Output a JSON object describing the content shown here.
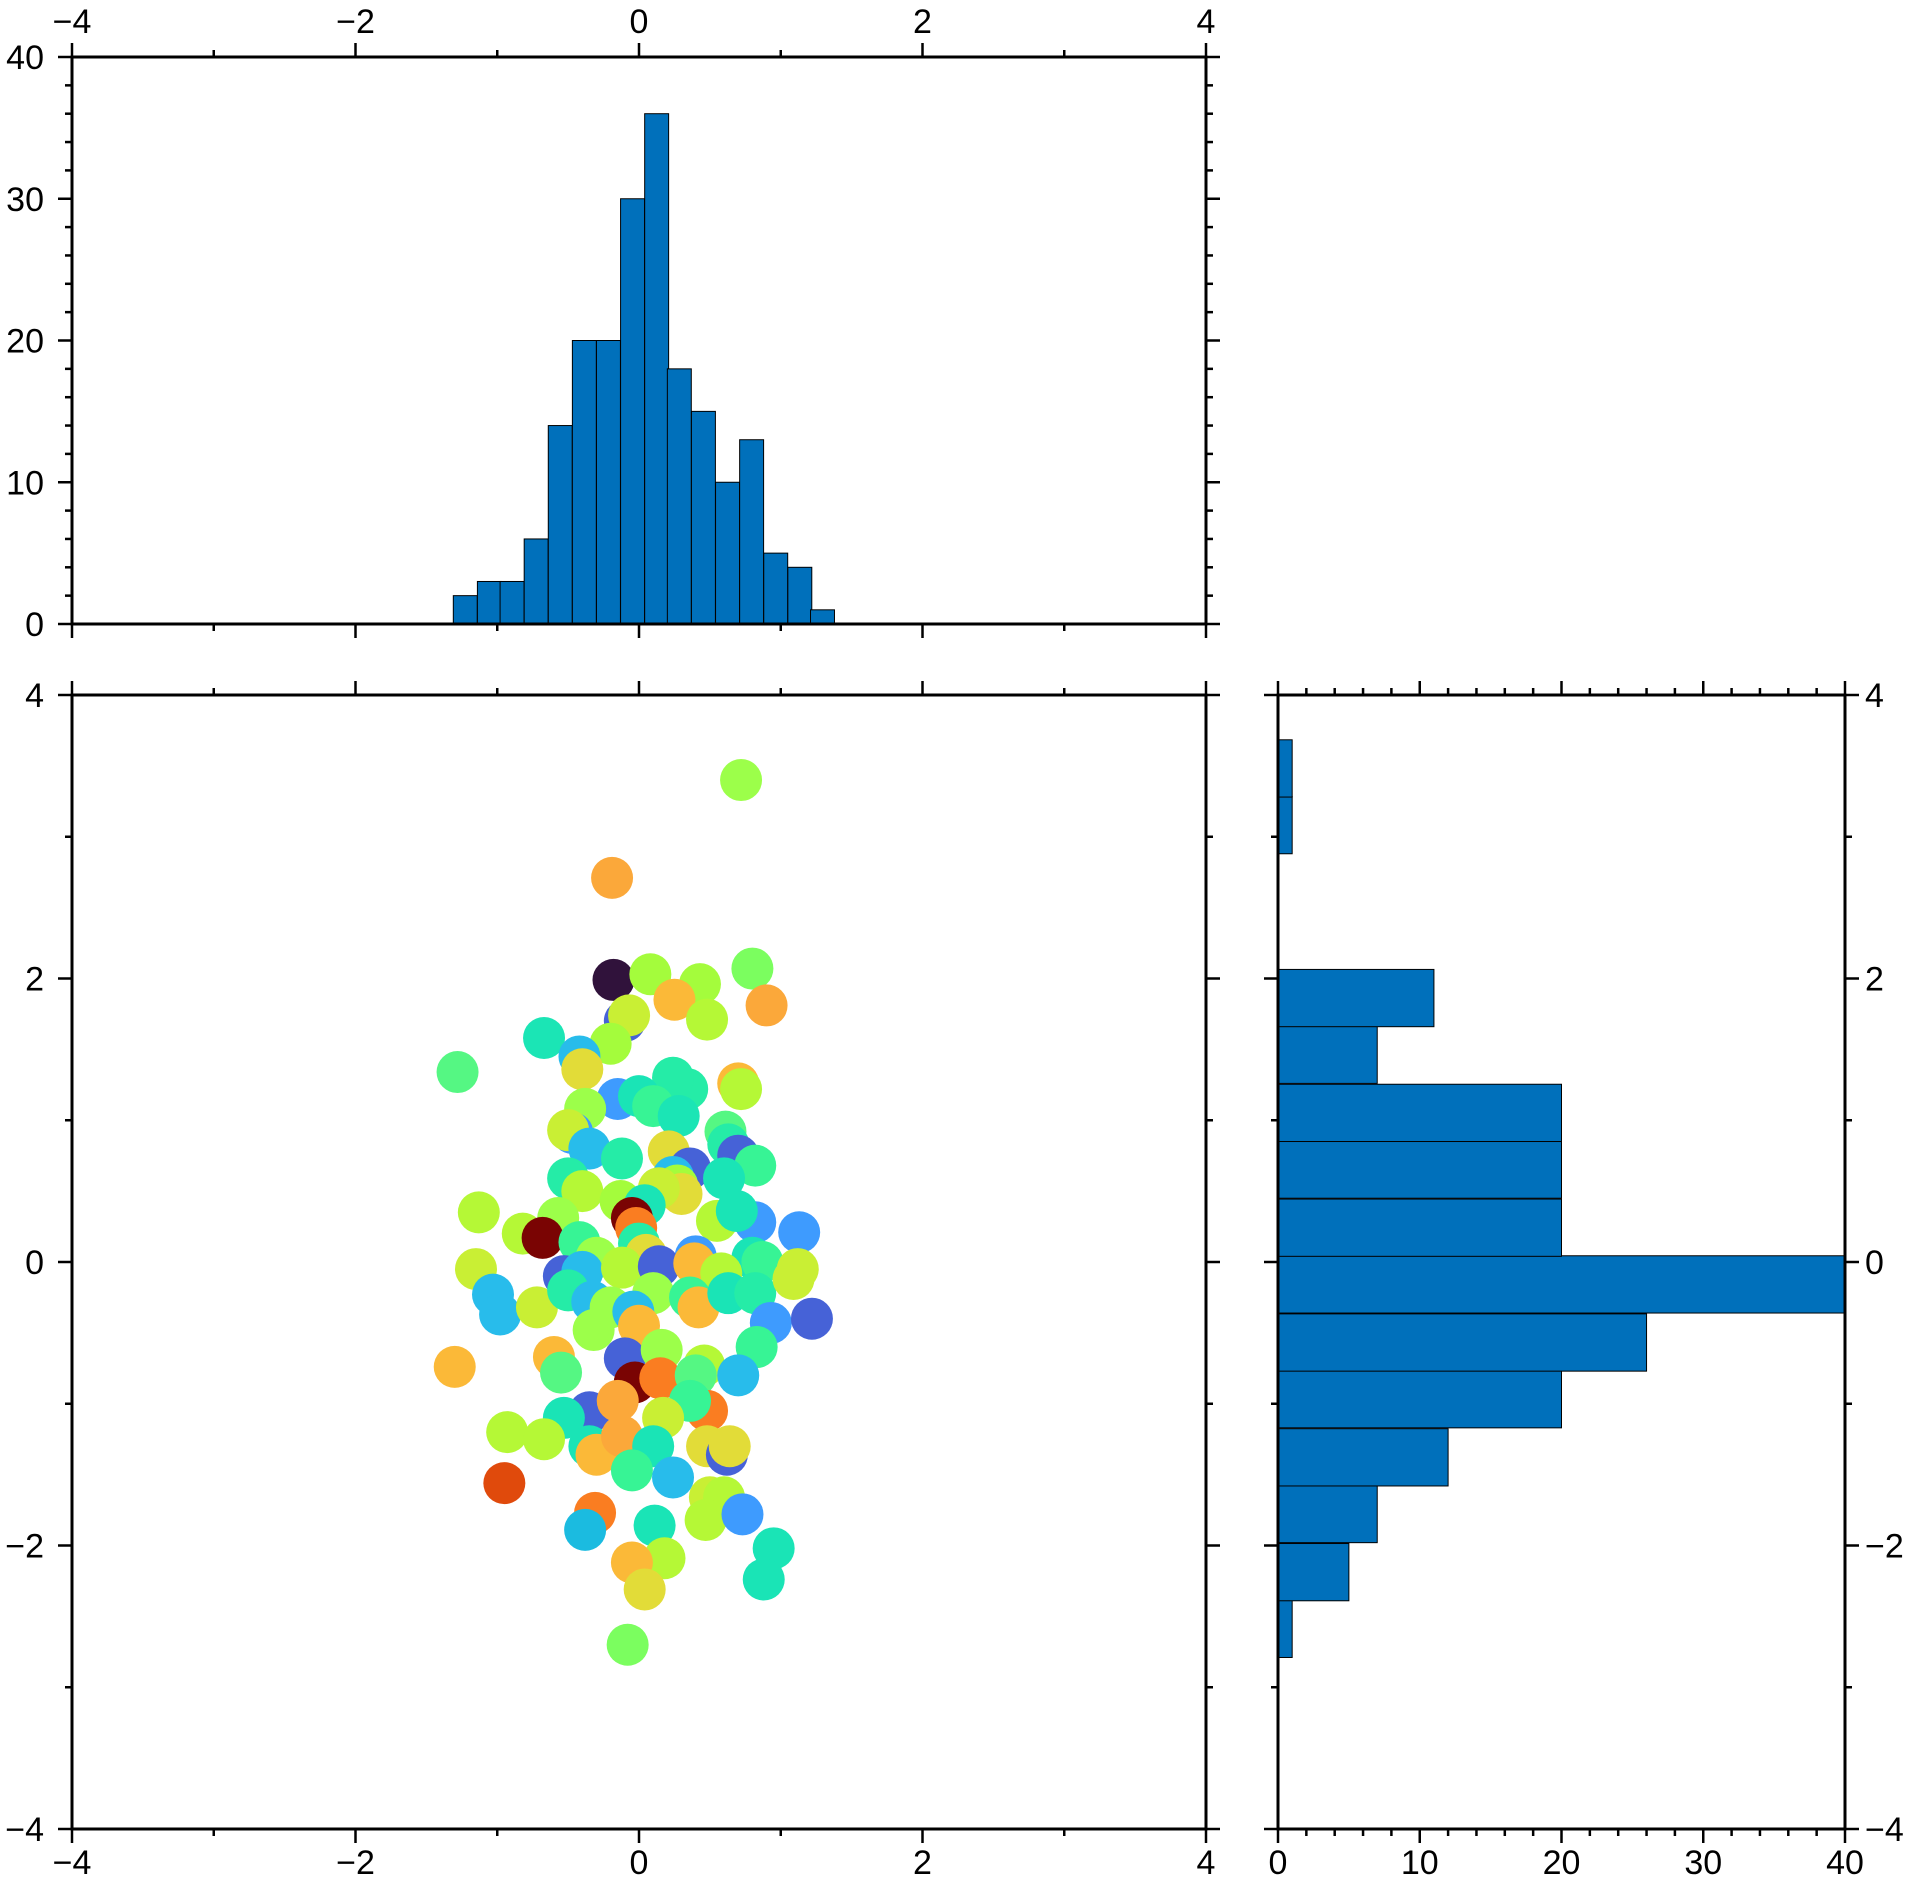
{
  "chart_data": [
    {
      "type": "bar",
      "panel": "top-histogram",
      "x_tick_labels": [
        "−4",
        "−2",
        "0",
        "2",
        "4"
      ],
      "y_tick_labels": [
        "0",
        "10",
        "20",
        "30",
        "40"
      ],
      "xlim": [
        -4,
        4
      ],
      "ylim": [
        0,
        40
      ],
      "bin_width": 0.169,
      "bars": [
        {
          "x0": -1.31,
          "value": 2
        },
        {
          "x0": -1.14,
          "value": 3
        },
        {
          "x0": -0.98,
          "value": 3
        },
        {
          "x0": -0.81,
          "value": 6
        },
        {
          "x0": -0.64,
          "value": 14
        },
        {
          "x0": -0.47,
          "value": 20
        },
        {
          "x0": -0.3,
          "value": 20
        },
        {
          "x0": -0.13,
          "value": 30
        },
        {
          "x0": 0.04,
          "value": 36
        },
        {
          "x0": 0.2,
          "value": 18
        },
        {
          "x0": 0.37,
          "value": 15
        },
        {
          "x0": 0.54,
          "value": 10
        },
        {
          "x0": 0.71,
          "value": 13
        },
        {
          "x0": 0.88,
          "value": 5
        },
        {
          "x0": 1.05,
          "value": 4
        },
        {
          "x0": 1.21,
          "value": 1
        }
      ],
      "bar_color": "#0070BB"
    },
    {
      "type": "scatter",
      "panel": "main-scatter",
      "x_tick_labels": [
        "−4",
        "−2",
        "0",
        "2",
        "4"
      ],
      "y_tick_labels": [
        "−4",
        "−2",
        "0",
        "2",
        "4"
      ],
      "xlim": [
        -4,
        4
      ],
      "ylim": [
        -4,
        4
      ],
      "points": [
        {
          "x": 0.72,
          "y": 3.4,
          "c": "#9CFF4A"
        },
        {
          "x": -0.19,
          "y": 2.71,
          "c": "#FBA83A"
        },
        {
          "x": -0.18,
          "y": 1.99,
          "c": "#30123B"
        },
        {
          "x": 0.08,
          "y": 2.03,
          "c": "#A4FC3C"
        },
        {
          "x": 0.43,
          "y": 1.96,
          "c": "#A4FC3C"
        },
        {
          "x": 0.8,
          "y": 2.07,
          "c": "#7BFE5F"
        },
        {
          "x": 0.9,
          "y": 1.81,
          "c": "#FBA83A"
        },
        {
          "x": 0.25,
          "y": 1.85,
          "c": "#FBB938"
        },
        {
          "x": -0.1,
          "y": 1.7,
          "c": "#4662D7"
        },
        {
          "x": -0.07,
          "y": 1.74,
          "c": "#C9EF34"
        },
        {
          "x": 0.48,
          "y": 1.71,
          "c": "#B5F836"
        },
        {
          "x": -0.67,
          "y": 1.58,
          "c": "#1BE5B5"
        },
        {
          "x": -0.2,
          "y": 1.54,
          "c": "#A4FC3C"
        },
        {
          "x": -0.42,
          "y": 1.45,
          "c": "#28BCEB"
        },
        {
          "x": -1.28,
          "y": 1.34,
          "c": "#55F783"
        },
        {
          "x": -0.4,
          "y": 1.36,
          "c": "#E2DC38"
        },
        {
          "x": 0.7,
          "y": 1.26,
          "c": "#FBB938"
        },
        {
          "x": 0.72,
          "y": 1.22,
          "c": "#B5F836"
        },
        {
          "x": 0.34,
          "y": 1.22,
          "c": "#25ECA7"
        },
        {
          "x": 0.24,
          "y": 1.3,
          "c": "#25ECA7"
        },
        {
          "x": -0.15,
          "y": 1.15,
          "c": "#3E9BFE"
        },
        {
          "x": 0.0,
          "y": 1.17,
          "c": "#1AE4B6"
        },
        {
          "x": -0.38,
          "y": 1.08,
          "c": "#9CFF4A"
        },
        {
          "x": 0.1,
          "y": 1.1,
          "c": "#37F495"
        },
        {
          "x": 0.28,
          "y": 1.03,
          "c": "#1BE5B5"
        },
        {
          "x": 0.61,
          "y": 0.92,
          "c": "#55F783"
        },
        {
          "x": 0.63,
          "y": 0.83,
          "c": "#25ECA7"
        },
        {
          "x": -0.47,
          "y": 0.91,
          "c": "#3E9BFE"
        },
        {
          "x": -0.5,
          "y": 0.93,
          "c": "#C9EF34"
        },
        {
          "x": -0.35,
          "y": 0.8,
          "c": "#28BCEB"
        },
        {
          "x": 0.21,
          "y": 0.78,
          "c": "#E2DC38"
        },
        {
          "x": -0.12,
          "y": 0.73,
          "c": "#25ECA7"
        },
        {
          "x": 0.7,
          "y": 0.75,
          "c": "#4662D7"
        },
        {
          "x": 0.82,
          "y": 0.68,
          "c": "#37F495"
        },
        {
          "x": 0.36,
          "y": 0.66,
          "c": "#4662D7"
        },
        {
          "x": 0.6,
          "y": 0.59,
          "c": "#1AE4B6"
        },
        {
          "x": 0.24,
          "y": 0.6,
          "c": "#28BCEB"
        },
        {
          "x": 0.27,
          "y": 0.54,
          "c": "#A4FC3C"
        },
        {
          "x": 0.3,
          "y": 0.48,
          "c": "#E2DC38"
        },
        {
          "x": 0.14,
          "y": 0.52,
          "c": "#C9EF34"
        },
        {
          "x": -0.5,
          "y": 0.59,
          "c": "#25ECA7"
        },
        {
          "x": -0.4,
          "y": 0.5,
          "c": "#B5F836"
        },
        {
          "x": -0.13,
          "y": 0.43,
          "c": "#A4FC3C"
        },
        {
          "x": 0.04,
          "y": 0.4,
          "c": "#1AE4B6"
        },
        {
          "x": -1.13,
          "y": 0.35,
          "c": "#B5F836"
        },
        {
          "x": -0.57,
          "y": 0.31,
          "c": "#9CFF4A"
        },
        {
          "x": -0.05,
          "y": 0.31,
          "c": "#7A0403"
        },
        {
          "x": 0.82,
          "y": 0.28,
          "c": "#3E9BFE"
        },
        {
          "x": 0.55,
          "y": 0.29,
          "c": "#B5F836"
        },
        {
          "x": 0.69,
          "y": 0.36,
          "c": "#1AE4B6"
        },
        {
          "x": 1.13,
          "y": 0.21,
          "c": "#3E9BFE"
        },
        {
          "x": -0.82,
          "y": 0.2,
          "c": "#B5F836"
        },
        {
          "x": -0.68,
          "y": 0.17,
          "c": "#7A0403"
        },
        {
          "x": -0.02,
          "y": 0.24,
          "c": "#FA7D21"
        },
        {
          "x": -0.42,
          "y": 0.14,
          "c": "#37F495"
        },
        {
          "x": 0.0,
          "y": 0.13,
          "c": "#25ECA7"
        },
        {
          "x": -0.3,
          "y": 0.03,
          "c": "#9CFF4A"
        },
        {
          "x": 0.05,
          "y": 0.05,
          "c": "#E2DC38"
        },
        {
          "x": 0.4,
          "y": 0.04,
          "c": "#3E9BFE"
        },
        {
          "x": 0.8,
          "y": 0.03,
          "c": "#1AE4B6"
        },
        {
          "x": 0.87,
          "y": 0.0,
          "c": "#37F495"
        },
        {
          "x": -1.15,
          "y": -0.05,
          "c": "#C9EF34"
        },
        {
          "x": -0.53,
          "y": -0.1,
          "c": "#4662D7"
        },
        {
          "x": -0.4,
          "y": -0.07,
          "c": "#28BCEB"
        },
        {
          "x": -0.12,
          "y": -0.04,
          "c": "#B5F836"
        },
        {
          "x": 0.14,
          "y": -0.03,
          "c": "#4662D7"
        },
        {
          "x": 0.39,
          "y": -0.01,
          "c": "#FBB938"
        },
        {
          "x": 0.58,
          "y": -0.08,
          "c": "#B5F836"
        },
        {
          "x": 1.12,
          "y": -0.05,
          "c": "#C9EF34"
        },
        {
          "x": -1.03,
          "y": -0.23,
          "c": "#28BCEB"
        },
        {
          "x": -0.98,
          "y": -0.37,
          "c": "#28BCEB"
        },
        {
          "x": -0.72,
          "y": -0.32,
          "c": "#C9EF34"
        },
        {
          "x": -0.5,
          "y": -0.2,
          "c": "#25ECA7"
        },
        {
          "x": -0.33,
          "y": -0.28,
          "c": "#28BCEB"
        },
        {
          "x": -0.2,
          "y": -0.32,
          "c": "#9CFF4A"
        },
        {
          "x": 0.1,
          "y": -0.22,
          "c": "#9CFF4A"
        },
        {
          "x": 0.36,
          "y": -0.25,
          "c": "#37F495"
        },
        {
          "x": 0.42,
          "y": -0.32,
          "c": "#FBB938"
        },
        {
          "x": 0.63,
          "y": -0.22,
          "c": "#1AE4B6"
        },
        {
          "x": 0.82,
          "y": -0.22,
          "c": "#25ECA7"
        },
        {
          "x": 1.09,
          "y": -0.12,
          "c": "#C9EF34"
        },
        {
          "x": -0.04,
          "y": -0.35,
          "c": "#28BCEB"
        },
        {
          "x": 0.93,
          "y": -0.43,
          "c": "#3E9BFE"
        },
        {
          "x": 1.22,
          "y": -0.4,
          "c": "#4662D7"
        },
        {
          "x": -0.32,
          "y": -0.48,
          "c": "#9CFF4A"
        },
        {
          "x": 0.0,
          "y": -0.45,
          "c": "#FBB938"
        },
        {
          "x": -1.3,
          "y": -0.74,
          "c": "#FBB938"
        },
        {
          "x": -0.6,
          "y": -0.67,
          "c": "#FBB938"
        },
        {
          "x": -0.55,
          "y": -0.78,
          "c": "#55F783"
        },
        {
          "x": -0.1,
          "y": -0.68,
          "c": "#4662D7"
        },
        {
          "x": 0.16,
          "y": -0.62,
          "c": "#9CFF4A"
        },
        {
          "x": 0.46,
          "y": -0.73,
          "c": "#B5F836"
        },
        {
          "x": 0.83,
          "y": -0.6,
          "c": "#37F495"
        },
        {
          "x": 0.7,
          "y": -0.8,
          "c": "#28BCEB"
        },
        {
          "x": -0.03,
          "y": -0.85,
          "c": "#7A0403"
        },
        {
          "x": 0.15,
          "y": -0.82,
          "c": "#FA7D21"
        },
        {
          "x": 0.4,
          "y": -0.8,
          "c": "#55F783"
        },
        {
          "x": -0.35,
          "y": -1.06,
          "c": "#4662D7"
        },
        {
          "x": -0.15,
          "y": -0.98,
          "c": "#FBA83A"
        },
        {
          "x": 0.48,
          "y": -1.05,
          "c": "#FA7D21"
        },
        {
          "x": 0.36,
          "y": -0.98,
          "c": "#37F495"
        },
        {
          "x": -0.53,
          "y": -1.1,
          "c": "#1AE4B6"
        },
        {
          "x": 0.17,
          "y": -1.1,
          "c": "#C9EF34"
        },
        {
          "x": -0.93,
          "y": -1.2,
          "c": "#B5F836"
        },
        {
          "x": -0.67,
          "y": -1.25,
          "c": "#B5F836"
        },
        {
          "x": -0.35,
          "y": -1.3,
          "c": "#1AE4B6"
        },
        {
          "x": -0.3,
          "y": -1.36,
          "c": "#FBB938"
        },
        {
          "x": -0.12,
          "y": -1.23,
          "c": "#FBA83A"
        },
        {
          "x": 0.1,
          "y": -1.3,
          "c": "#1AE4B6"
        },
        {
          "x": 0.48,
          "y": -1.3,
          "c": "#E2DC38"
        },
        {
          "x": 0.62,
          "y": -1.36,
          "c": "#4662D7"
        },
        {
          "x": 0.64,
          "y": -1.3,
          "c": "#E2DC38"
        },
        {
          "x": -0.95,
          "y": -1.56,
          "c": "#E04A0C"
        },
        {
          "x": -0.05,
          "y": -1.47,
          "c": "#37F495"
        },
        {
          "x": 0.24,
          "y": -1.52,
          "c": "#28BCEB"
        },
        {
          "x": 0.5,
          "y": -1.66,
          "c": "#C9EF34"
        },
        {
          "x": 0.6,
          "y": -1.66,
          "c": "#B5F836"
        },
        {
          "x": -0.31,
          "y": -1.77,
          "c": "#FA7D21"
        },
        {
          "x": 0.47,
          "y": -1.82,
          "c": "#B5F836"
        },
        {
          "x": 0.73,
          "y": -1.78,
          "c": "#3E9BFE"
        },
        {
          "x": -0.38,
          "y": -1.89,
          "c": "#1BBBE0"
        },
        {
          "x": 0.11,
          "y": -1.86,
          "c": "#1AE4B6"
        },
        {
          "x": 0.95,
          "y": -2.02,
          "c": "#1AE4B6"
        },
        {
          "x": 0.18,
          "y": -2.09,
          "c": "#B5F836"
        },
        {
          "x": -0.05,
          "y": -2.12,
          "c": "#FBB938"
        },
        {
          "x": 0.04,
          "y": -2.31,
          "c": "#E2DC38"
        },
        {
          "x": 0.88,
          "y": -2.24,
          "c": "#1AE4B6"
        },
        {
          "x": -0.08,
          "y": -2.7,
          "c": "#7BFE5F"
        }
      ]
    },
    {
      "type": "bar",
      "panel": "right-histogram",
      "orientation": "horizontal",
      "x_tick_labels": [
        "0",
        "10",
        "20",
        "30",
        "40"
      ],
      "y_tick_labels": [
        "−4",
        "−2",
        "0",
        "2",
        "4"
      ],
      "xlim": [
        0,
        40
      ],
      "ylim": [
        -4,
        4
      ],
      "bin_height": 0.404,
      "bars": [
        {
          "y0": -2.79,
          "value": 1
        },
        {
          "y0": -2.39,
          "value": 5
        },
        {
          "y0": -1.98,
          "value": 7
        },
        {
          "y0": -1.58,
          "value": 12
        },
        {
          "y0": -1.17,
          "value": 20
        },
        {
          "y0": -0.77,
          "value": 26
        },
        {
          "y0": -0.36,
          "value": 40
        },
        {
          "y0": 0.04,
          "value": 20
        },
        {
          "y0": 0.45,
          "value": 20
        },
        {
          "y0": 0.85,
          "value": 20
        },
        {
          "y0": 1.26,
          "value": 7
        },
        {
          "y0": 1.66,
          "value": 11
        },
        {
          "y0": 2.88,
          "value": 1
        },
        {
          "y0": 3.28,
          "value": 1
        }
      ],
      "bar_color": "#0070BB"
    }
  ]
}
